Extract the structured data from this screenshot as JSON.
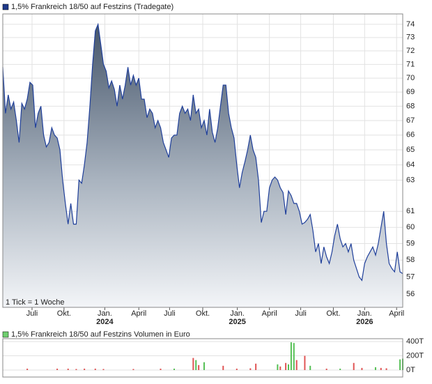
{
  "chart_data": [
    {
      "type": "area",
      "title": "1,5% Frankreich 18/50 auf Festzins (Tradegate)",
      "annotation": "1 Tick = 1 Woche",
      "legend_color": "#1f3a8a",
      "color": "#1f3f9a",
      "yscale": "log",
      "grid": true,
      "values": [
        70.8,
        67.5,
        68.8,
        67.8,
        68.3,
        67,
        65.5,
        68.2,
        67.8,
        68.5,
        69.7,
        69.5,
        66.5,
        67.5,
        68,
        66,
        65.2,
        65.5,
        66.5,
        66,
        65.8,
        65,
        63,
        61.5,
        60.2,
        61.5,
        60.2,
        60.2,
        63,
        62.8,
        64,
        65.5,
        68,
        71,
        73.5,
        74,
        72.5,
        71,
        70.5,
        69.3,
        69.8,
        69.2,
        68,
        69.5,
        68.5,
        69.5,
        70.8,
        69.5,
        70.2,
        69.5,
        70,
        68.5,
        68.5,
        67.2,
        67.8,
        67.5,
        66.5,
        67,
        66.5,
        65.5,
        65,
        64.5,
        65.8,
        66,
        66,
        67.5,
        68,
        67.5,
        67.8,
        67,
        68.8,
        67.5,
        67.8,
        66.5,
        67,
        66,
        67.8,
        66.2,
        65.5,
        66.5,
        68,
        69.5,
        69.5,
        67.5,
        66.5,
        65.8,
        64,
        62.5,
        63.5,
        64.2,
        65,
        66,
        65,
        64.5,
        63,
        60.3,
        61,
        61,
        62.5,
        63,
        63.2,
        63,
        62.5,
        62.2,
        60.8,
        62.3,
        62,
        61.5,
        61.5,
        61,
        60.2,
        60.3,
        60.5,
        60.8,
        59.8,
        58.5,
        59,
        57.8,
        58.8,
        58.2,
        57.8,
        58.5,
        59.5,
        60.2,
        59.3,
        58.8,
        59,
        58.5,
        59,
        58,
        57.5,
        57,
        56.8,
        57.8,
        58.2,
        58.5,
        58.8,
        58.3,
        59,
        60,
        61,
        59,
        57.8,
        57.5,
        57.3,
        58.5,
        57.3,
        57.2
      ],
      "xlim": [
        0,
        147
      ],
      "xticks": [
        {
          "value": 10.75,
          "label": "Juli"
        },
        {
          "value": 22.5,
          "label": "Okt."
        },
        {
          "value": 37.5,
          "label": "Jan.",
          "year": "2024"
        },
        {
          "value": 50,
          "label": "April"
        },
        {
          "value": 61.3,
          "label": "Juli"
        },
        {
          "value": 73.5,
          "label": "Okt."
        },
        {
          "value": 86.2,
          "label": "Jan.",
          "year": "2025"
        },
        {
          "value": 98,
          "label": "April"
        },
        {
          "value": 109.5,
          "label": "Juli"
        },
        {
          "value": 121.5,
          "label": "Okt."
        },
        {
          "value": 133,
          "label": "Jan.",
          "year": "2026"
        },
        {
          "value": 144.75,
          "label": "April"
        }
      ],
      "ylim": [
        55.24,
        74.8
      ],
      "yticks": [
        56,
        57,
        58,
        59,
        60,
        61,
        63,
        64,
        65,
        66,
        67,
        68,
        69,
        70,
        71,
        72,
        73,
        74
      ]
    },
    {
      "type": "bar",
      "title": "1,5% Frankreich 18/50 auf Festzins Volumen in Euro",
      "legend_color": "#6fcf6f",
      "x": [
        9,
        20,
        24,
        27,
        30,
        34,
        37,
        48,
        58,
        63,
        70,
        71,
        72,
        74,
        81,
        86,
        91,
        93,
        101,
        102,
        104,
        105,
        106,
        107,
        108,
        111,
        113,
        119,
        124,
        129,
        132,
        137,
        139,
        141,
        146,
        147
      ],
      "values": [
        20,
        20,
        20,
        15,
        20,
        20,
        15,
        15,
        20,
        20,
        170,
        140,
        70,
        110,
        60,
        20,
        25,
        90,
        80,
        50,
        100,
        80,
        390,
        380,
        140,
        200,
        60,
        20,
        20,
        100,
        30,
        40,
        30,
        25,
        150,
        160
      ],
      "colors": [
        "#e05555",
        "#e05555",
        "#e05555",
        "#e05555",
        "#e05555",
        "#e05555",
        "#e05555",
        "#e05555",
        "#e05555",
        "#55c055",
        "#e05555",
        "#55c055",
        "#e05555",
        "#55c055",
        "#e05555",
        "#e05555",
        "#e05555",
        "#e05555",
        "#55c055",
        "#e05555",
        "#e05555",
        "#55c055",
        "#55c055",
        "#55c055",
        "#e05555",
        "#e05555",
        "#55c055",
        "#e05555",
        "#55c055",
        "#e05555",
        "#e05555",
        "#55c055",
        "#e05555",
        "#e05555",
        "#55c055",
        "#55c055"
      ],
      "xlim": [
        0,
        147
      ],
      "ylim": [
        0,
        440
      ],
      "yticks": [
        {
          "value": 0,
          "label": "0T"
        },
        {
          "value": 200,
          "label": "200T"
        },
        {
          "value": 400,
          "label": "400T"
        }
      ]
    }
  ]
}
